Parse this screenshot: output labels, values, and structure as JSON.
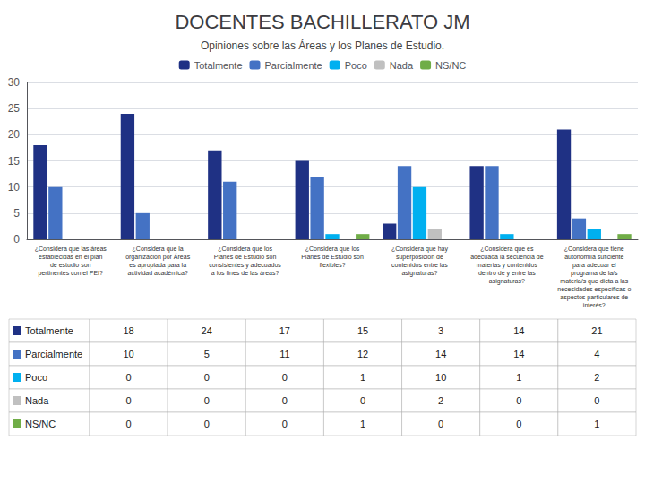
{
  "chart_data": {
    "type": "bar",
    "title": "DOCENTES BACHILLERATO JM",
    "subtitle": "Opiniones sobre las Áreas y los Planes de Estudio.",
    "categories": [
      "¿Considera que las áreas\nestablecidas en el plan\nde estudio son\npertinentes con el PEI?",
      "¿Considera que la\norganización por Áreas\nes apropiada para la\nactividad académica?",
      "¿Considera que los\nPlanes de Estudio son\nconsistentes y adecuados\na los fines de las áreas?",
      "¿Considera que los\nPlanes de Estudio son\nflexibles?",
      "¿Considera que hay\nsuperposición de\ncontenidos entre las\nasignaturas?",
      "¿Considera que es\nadecuada la secuencia de\nmaterias y contenidos\ndentro de y entre las\nasignaturas?",
      "¿Considera que tiene\nautonomiía suficiente\npara adecuar el\nprograma de la/s\nmateria/s que dicta a las\nnecesidades específicas o\naspectos particulares de\ninterés?"
    ],
    "series": [
      {
        "name": "Totalmente",
        "color": "#1f3184",
        "values": [
          18,
          24,
          17,
          15,
          3,
          14,
          21
        ]
      },
      {
        "name": "Parcialmente",
        "color": "#4472c4",
        "values": [
          10,
          5,
          11,
          12,
          14,
          14,
          4
        ]
      },
      {
        "name": "Poco",
        "color": "#00b0f0",
        "values": [
          0,
          0,
          0,
          1,
          10,
          1,
          2
        ]
      },
      {
        "name": "Nada",
        "color": "#c0c0c0",
        "values": [
          0,
          0,
          0,
          0,
          2,
          0,
          0
        ]
      },
      {
        "name": "NS/NC",
        "color": "#70ad47",
        "values": [
          0,
          0,
          0,
          1,
          0,
          0,
          1
        ]
      }
    ],
    "ylim": [
      0,
      30
    ],
    "yticks": [
      0,
      5,
      10,
      15,
      20,
      25,
      30
    ],
    "grid": true,
    "legend": "top"
  }
}
